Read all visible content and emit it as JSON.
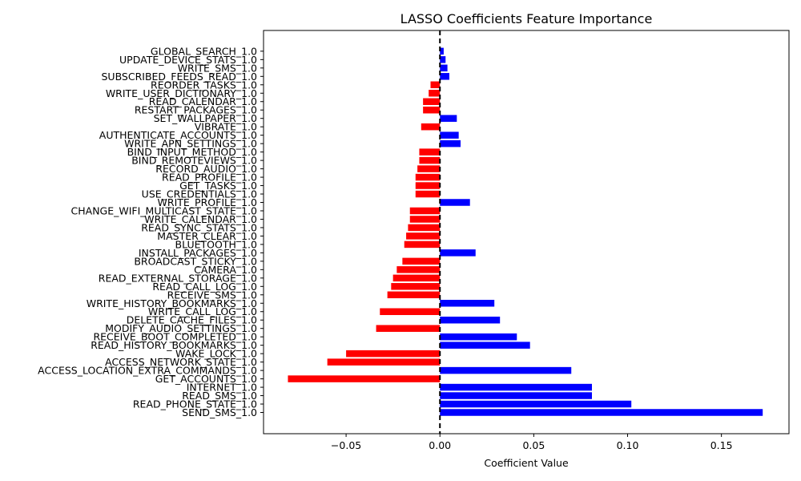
{
  "chart_data": {
    "type": "bar",
    "orientation": "horizontal",
    "title": "LASSO Coefficients Feature Importance",
    "xlabel": "Coefficient Value",
    "ylabel": "",
    "xlim": [
      -0.094,
      0.186
    ],
    "xticks": [
      {
        "value": -0.05,
        "label": "−0.05"
      },
      {
        "value": 0.0,
        "label": "0.00"
      },
      {
        "value": 0.05,
        "label": "0.05"
      },
      {
        "value": 0.1,
        "label": "0.10"
      },
      {
        "value": 0.15,
        "label": "0.15"
      }
    ],
    "grid": false,
    "zero_line": "dashed",
    "positive_color": "#0000ff",
    "negative_color": "#ff0000",
    "categories": [
      "SEND_SMS_1.0",
      "READ_PHONE_STATE_1.0",
      "READ_SMS_1.0",
      "INTERNET_1.0",
      "GET_ACCOUNTS_1.0",
      "ACCESS_LOCATION_EXTRA_COMMANDS_1.0",
      "ACCESS_NETWORK_STATE_1.0",
      "WAKE_LOCK_1.0",
      "READ_HISTORY_BOOKMARKS_1.0",
      "RECEIVE_BOOT_COMPLETED_1.0",
      "MODIFY_AUDIO_SETTINGS_1.0",
      "DELETE_CACHE_FILES_1.0",
      "WRITE_CALL_LOG_1.0",
      "WRITE_HISTORY_BOOKMARKS_1.0",
      "RECEIVE_SMS_1.0",
      "READ_CALL_LOG_1.0",
      "READ_EXTERNAL_STORAGE_1.0",
      "CAMERA_1.0",
      "BROADCAST_STICKY_1.0",
      "INSTALL_PACKAGES_1.0",
      "BLUETOOTH_1.0",
      "MASTER_CLEAR_1.0",
      "READ_SYNC_STATS_1.0",
      "WRITE_CALENDAR_1.0",
      "CHANGE_WIFI_MULTICAST_STATE_1.0",
      "WRITE_PROFILE_1.0",
      "USE_CREDENTIALS_1.0",
      "GET_TASKS_1.0",
      "READ_PROFILE_1.0",
      "RECORD_AUDIO_1.0",
      "BIND_REMOTEVIEWS_1.0",
      "BIND_INPUT_METHOD_1.0",
      "WRITE_APN_SETTINGS_1.0",
      "AUTHENTICATE_ACCOUNTS_1.0",
      "VIBRATE_1.0",
      "SET_WALLPAPER_1.0",
      "RESTART_PACKAGES_1.0",
      "READ_CALENDAR_1.0",
      "WRITE_USER_DICTIONARY_1.0",
      "REORDER_TASKS_1.0",
      "SUBSCRIBED_FEEDS_READ_1.0",
      "WRITE_SMS_1.0",
      "UPDATE_DEVICE_STATS_1.0",
      "GLOBAL_SEARCH_1.0"
    ],
    "values": [
      0.172,
      0.102,
      0.081,
      0.081,
      -0.081,
      0.07,
      -0.06,
      -0.05,
      0.048,
      0.041,
      -0.034,
      0.032,
      -0.032,
      0.029,
      -0.028,
      -0.026,
      -0.025,
      -0.023,
      -0.02,
      0.019,
      -0.019,
      -0.018,
      -0.017,
      -0.016,
      -0.016,
      0.016,
      -0.013,
      -0.013,
      -0.013,
      -0.012,
      -0.011,
      -0.011,
      0.011,
      0.01,
      -0.01,
      0.009,
      -0.009,
      -0.009,
      -0.006,
      -0.005,
      0.005,
      0.004,
      0.003,
      0.002
    ]
  }
}
